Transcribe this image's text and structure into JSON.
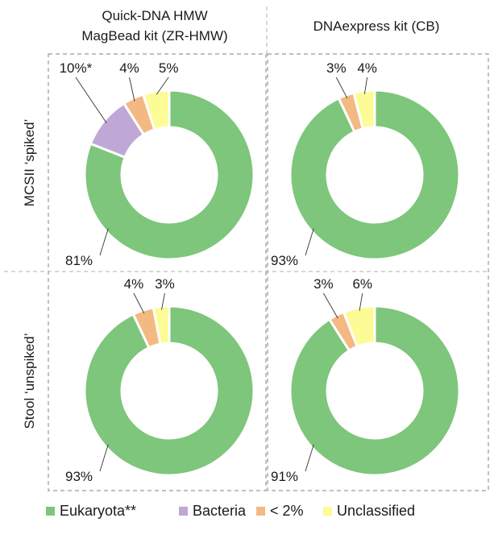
{
  "chart_data": {
    "type": "pie",
    "style": "donut",
    "column_titles": [
      [
        "Quick-DNA HMW",
        "MagBead kit (ZR-HMW)"
      ],
      [
        "DNAexpress kit (CB)"
      ]
    ],
    "row_titles": [
      "MCSII ‘spiked’",
      "Stool ‘unspiked’"
    ],
    "legend": {
      "placement": "bottom",
      "entries": [
        {
          "label": "Eukaryota**",
          "color": "#7dc67b"
        },
        {
          "label": "Bacteria",
          "color": "#bfa8d6"
        },
        {
          "label": "< 2%",
          "color": "#f4b983"
        },
        {
          "label": "Unclassified",
          "color": "#fdfb95"
        }
      ]
    },
    "charts": [
      {
        "row": 0,
        "col": 0,
        "slices": [
          {
            "category": "Eukaryota**",
            "value": 81,
            "label": "81%"
          },
          {
            "category": "Bacteria",
            "value": 10,
            "label": "10%*"
          },
          {
            "category": "< 2%",
            "value": 4,
            "label": "4%"
          },
          {
            "category": "Unclassified",
            "value": 5,
            "label": "5%"
          }
        ]
      },
      {
        "row": 0,
        "col": 1,
        "slices": [
          {
            "category": "Eukaryota**",
            "value": 93,
            "label": "93%"
          },
          {
            "category": "< 2%",
            "value": 3,
            "label": "3%"
          },
          {
            "category": "Unclassified",
            "value": 4,
            "label": "4%"
          }
        ]
      },
      {
        "row": 1,
        "col": 0,
        "slices": [
          {
            "category": "Eukaryota**",
            "value": 93,
            "label": "93%"
          },
          {
            "category": "< 2%",
            "value": 4,
            "label": "4%"
          },
          {
            "category": "Unclassified",
            "value": 3,
            "label": "3%"
          }
        ]
      },
      {
        "row": 1,
        "col": 1,
        "slices": [
          {
            "category": "Eukaryota**",
            "value": 91,
            "label": "91%"
          },
          {
            "category": "< 2%",
            "value": 3,
            "label": "3%"
          },
          {
            "category": "Unclassified",
            "value": 6,
            "label": "6%"
          }
        ]
      }
    ]
  }
}
